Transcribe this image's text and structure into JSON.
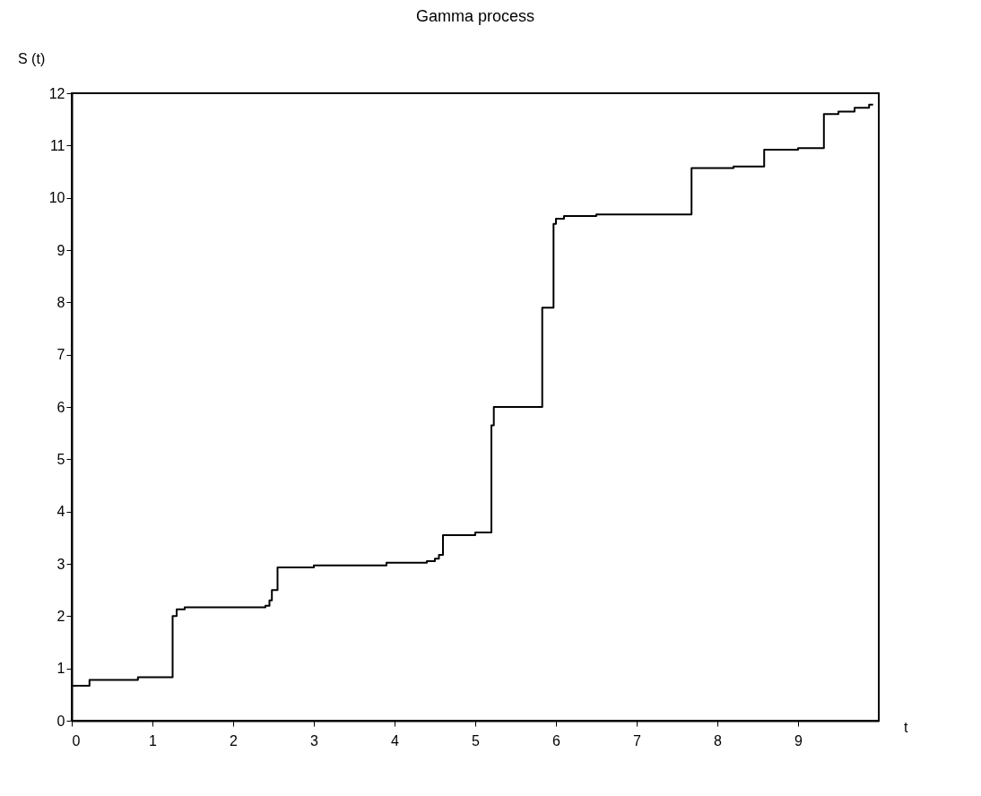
{
  "chart_data": {
    "type": "step",
    "title": "Gamma process",
    "xlabel": "t",
    "ylabel": "S (t)",
    "x": [
      0,
      0.22,
      0.82,
      1.25,
      1.3,
      1.4,
      2.4,
      2.45,
      2.48,
      2.55,
      3.0,
      3.9,
      4.4,
      4.5,
      4.55,
      4.6,
      5.0,
      5.2,
      5.23,
      5.83,
      5.97,
      6.0,
      6.1,
      6.5,
      7.68,
      8.2,
      8.58,
      9.0,
      9.32,
      9.5,
      9.7,
      9.88,
      9.93
    ],
    "series": [
      {
        "color": "#000000",
        "values": [
          0.67,
          0.78,
          0.83,
          2.0,
          2.13,
          2.17,
          2.2,
          2.3,
          2.5,
          2.93,
          2.97,
          3.02,
          3.05,
          3.1,
          3.17,
          3.55,
          3.6,
          5.65,
          6.0,
          7.9,
          9.5,
          9.6,
          9.65,
          9.68,
          10.57,
          10.6,
          10.92,
          10.95,
          11.6,
          11.65,
          11.72,
          11.78,
          11.78
        ]
      }
    ],
    "xlim": [
      0,
      10
    ],
    "xticks": [
      0,
      1,
      2,
      3,
      4,
      5,
      6,
      7,
      8,
      9
    ],
    "ylim": [
      0,
      12
    ],
    "yticks": [
      0,
      1,
      2,
      3,
      4,
      5,
      6,
      7,
      8,
      9,
      10,
      11,
      12
    ],
    "grid": false,
    "line_style": "solid",
    "marker": "none"
  }
}
